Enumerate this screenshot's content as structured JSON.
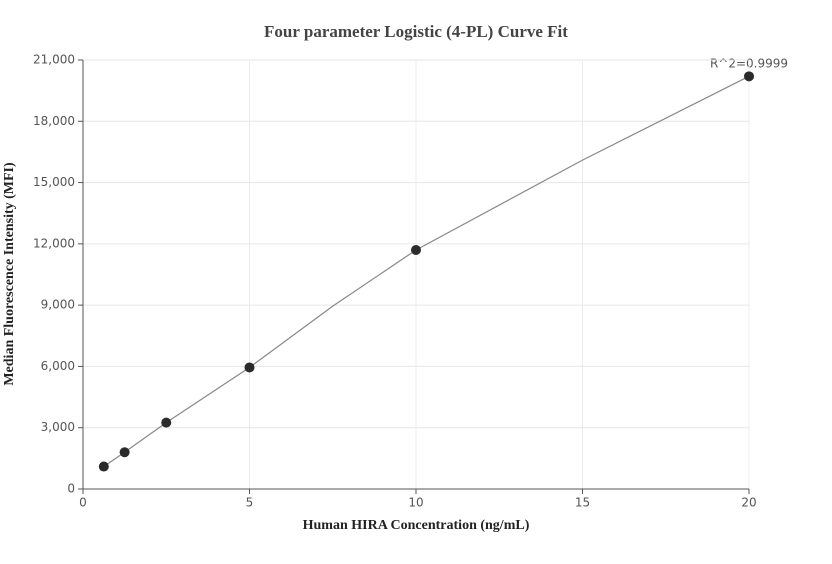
{
  "chart_data": {
    "type": "scatter",
    "title": "Four parameter Logistic (4-PL) Curve Fit",
    "x_label": "Human HIRA Concentration (ng/mL)",
    "y_label": "Median Fluorescence Intensity (MFI)",
    "annotation": "R^2=0.9999",
    "x": [
      0.625,
      1.25,
      2.5,
      5,
      10,
      20
    ],
    "values": [
      1100,
      1800,
      3250,
      5950,
      11700,
      20200
    ],
    "color": "#2b2b2b",
    "fit": {
      "x": [
        0.625,
        1.25,
        2.5,
        5,
        7.5,
        10,
        15,
        20
      ],
      "values": [
        1100,
        1800,
        3250,
        5950,
        8950,
        11700,
        16100,
        20200
      ],
      "color": "#888888"
    },
    "xlim": [
      0,
      20
    ],
    "xticks": [
      0,
      5,
      10,
      15,
      20
    ],
    "ylim": [
      0,
      21000
    ],
    "yticks": [
      0,
      {
        "value": 3000,
        "label": "3,000"
      },
      {
        "value": 6000,
        "label": "6,000"
      },
      {
        "value": 9000,
        "label": "9,000"
      },
      {
        "value": 12000,
        "label": "12,000"
      },
      {
        "value": 15000,
        "label": "15,000"
      },
      {
        "value": 18000,
        "label": "18,000"
      },
      {
        "value": 21000,
        "label": "21,000"
      }
    ],
    "grid": true
  }
}
